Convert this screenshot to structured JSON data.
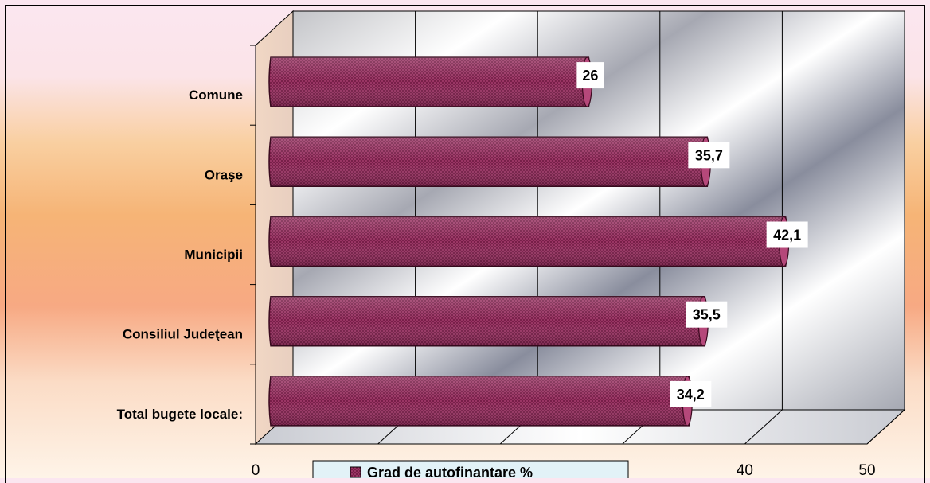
{
  "chart_data": {
    "type": "bar",
    "orientation": "horizontal",
    "three_d": true,
    "categories": [
      "Total bugete locale:",
      "Consiliul Judeţean",
      "Municipii",
      "Oraşe",
      "Comune"
    ],
    "series": [
      {
        "name": "Grad de autofinantare %",
        "values": [
          34.2,
          35.5,
          42.1,
          35.7,
          26
        ]
      }
    ],
    "value_labels": [
      "34,2",
      "35,5",
      "42,1",
      "35,7",
      "26"
    ],
    "xlim": [
      0,
      50
    ],
    "xticks": [
      0,
      10,
      20,
      30,
      40,
      50
    ],
    "xtick_labels": [
      "0",
      "",
      "",
      "",
      "40",
      "50"
    ],
    "grid": true,
    "legend_position": "bottom",
    "colors": {
      "bar": "#9c2f63",
      "bar_light": "#d2709c",
      "bar_dark": "#5a1232"
    }
  }
}
